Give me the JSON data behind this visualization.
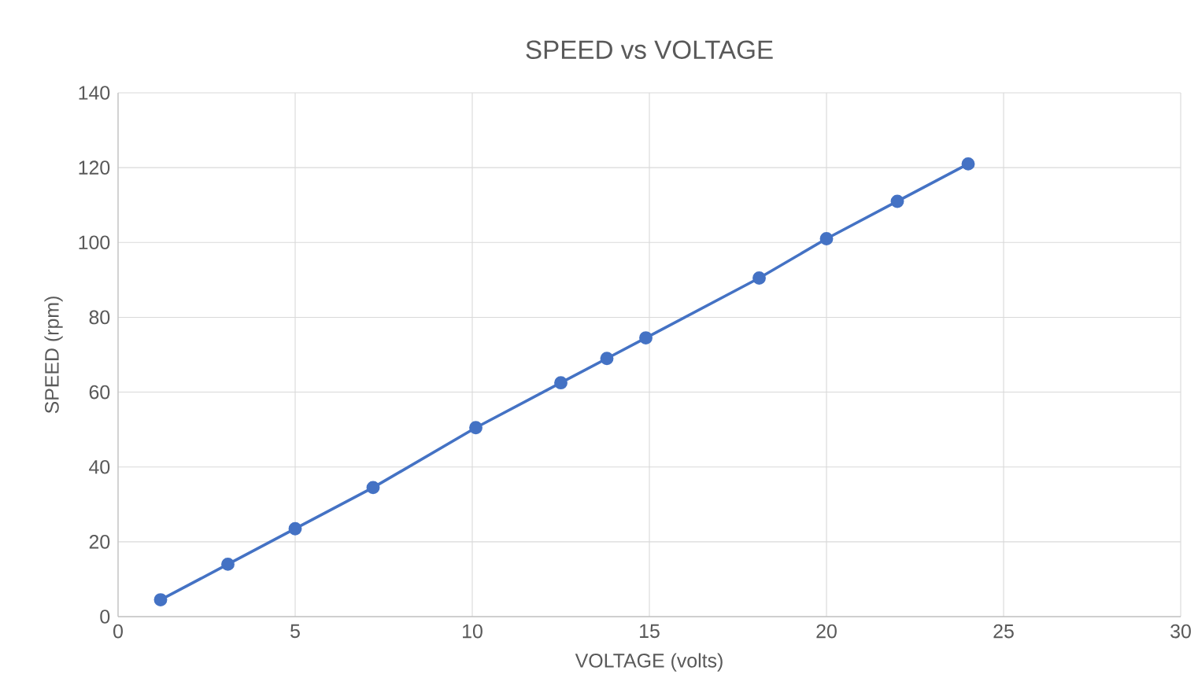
{
  "chart_data": {
    "type": "line",
    "title": "SPEED vs VOLTAGE",
    "xlabel": "VOLTAGE (volts)",
    "ylabel": "SPEED (rpm)",
    "series": [
      {
        "color": "#4472c4",
        "x": [
          1.2,
          3.1,
          5,
          7.2,
          10.1,
          12.5,
          13.8,
          14.9,
          18.1,
          20,
          22,
          24
        ],
        "values": [
          4.5,
          14,
          23.5,
          34.5,
          50.5,
          62.5,
          69,
          74.5,
          90.5,
          101,
          111,
          121
        ]
      }
    ],
    "xlim": [
      0,
      30
    ],
    "xticks": [
      0,
      5,
      10,
      15,
      20,
      25,
      30
    ],
    "ylim": [
      0,
      140
    ],
    "yticks": [
      0,
      20,
      40,
      60,
      80,
      100,
      120,
      140
    ],
    "grid": true,
    "marker": "circle",
    "line_style": "solid"
  }
}
